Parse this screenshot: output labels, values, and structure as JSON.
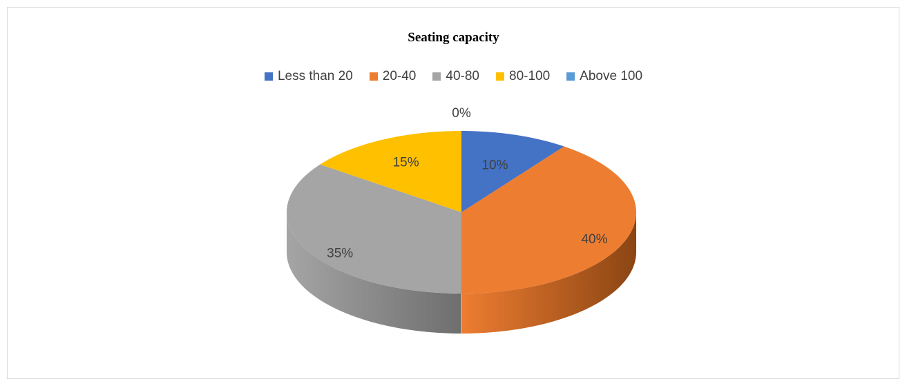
{
  "chart_data": {
    "type": "pie",
    "title": "Seating capacity",
    "categories": [
      "Less than 20",
      "20-40",
      "40-80",
      "80-100",
      "Above 100"
    ],
    "values": [
      10,
      40,
      35,
      15,
      0
    ],
    "labels": [
      "10%",
      "40%",
      "35%",
      "15%",
      "0%"
    ],
    "colors": [
      "#4472C4",
      "#ED7D31",
      "#A5A5A5",
      "#FFC000",
      "#5B9BD5"
    ],
    "side_colors": [
      "#2F5597",
      "#8B4513",
      "#6E6E6E",
      "#B38600",
      "#3E6E9E"
    ],
    "legend_position": "top",
    "style": "3d"
  }
}
